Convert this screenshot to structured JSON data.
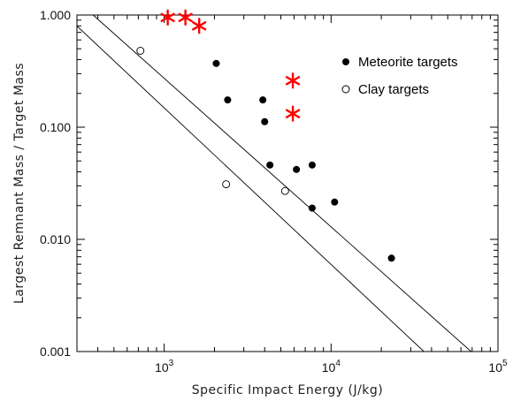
{
  "chart_data": {
    "type": "scatter",
    "xlabel": "Specific Impact Energy (J/kg)",
    "ylabel": "Largest Remnant Mass / Target Mass",
    "x_scale": "log",
    "y_scale": "log",
    "xlim": [
      300,
      100000
    ],
    "ylim": [
      0.001,
      1.0
    ],
    "x_ticks": [
      {
        "value": 1000,
        "base": "10",
        "exp": "3"
      },
      {
        "value": 10000,
        "base": "10",
        "exp": "4"
      },
      {
        "value": 100000,
        "base": "10",
        "exp": "5"
      }
    ],
    "y_ticks": [
      {
        "value": 0.001,
        "label": "0.001"
      },
      {
        "value": 0.01,
        "label": "0.010"
      },
      {
        "value": 0.1,
        "label": "0.100"
      },
      {
        "value": 1.0,
        "label": "1.000"
      }
    ],
    "grid": false,
    "legend_position": "top-right",
    "series": [
      {
        "name": "Meteorite targets",
        "marker": "filled-circle",
        "color": "#000000",
        "points": [
          {
            "x": 2050,
            "y": 0.37
          },
          {
            "x": 2400,
            "y": 0.175
          },
          {
            "x": 3900,
            "y": 0.175
          },
          {
            "x": 4000,
            "y": 0.112
          },
          {
            "x": 4300,
            "y": 0.046
          },
          {
            "x": 6200,
            "y": 0.042
          },
          {
            "x": 7700,
            "y": 0.046
          },
          {
            "x": 7700,
            "y": 0.019
          },
          {
            "x": 10500,
            "y": 0.0215
          },
          {
            "x": 23000,
            "y": 0.0068
          }
        ]
      },
      {
        "name": "Clay targets",
        "marker": "open-circle",
        "color": "#000000",
        "points": [
          {
            "x": 720,
            "y": 0.48
          },
          {
            "x": 2350,
            "y": 0.031
          },
          {
            "x": 5300,
            "y": 0.027
          }
        ]
      },
      {
        "marker": "asterisk",
        "color": "#ff0000",
        "points": [
          {
            "x": 1050,
            "y": 0.95
          },
          {
            "x": 1340,
            "y": 0.95
          },
          {
            "x": 1620,
            "y": 0.8
          },
          {
            "x": 5900,
            "y": 0.26
          },
          {
            "x": 5900,
            "y": 0.132
          }
        ]
      }
    ],
    "lines": [
      {
        "points": [
          [
            375,
            1.0
          ],
          [
            69000,
            0.001
          ]
        ],
        "color": "#000000"
      },
      {
        "points": [
          [
            255,
            1.0
          ],
          [
            36000,
            0.001
          ]
        ],
        "color": "#000000"
      }
    ]
  }
}
